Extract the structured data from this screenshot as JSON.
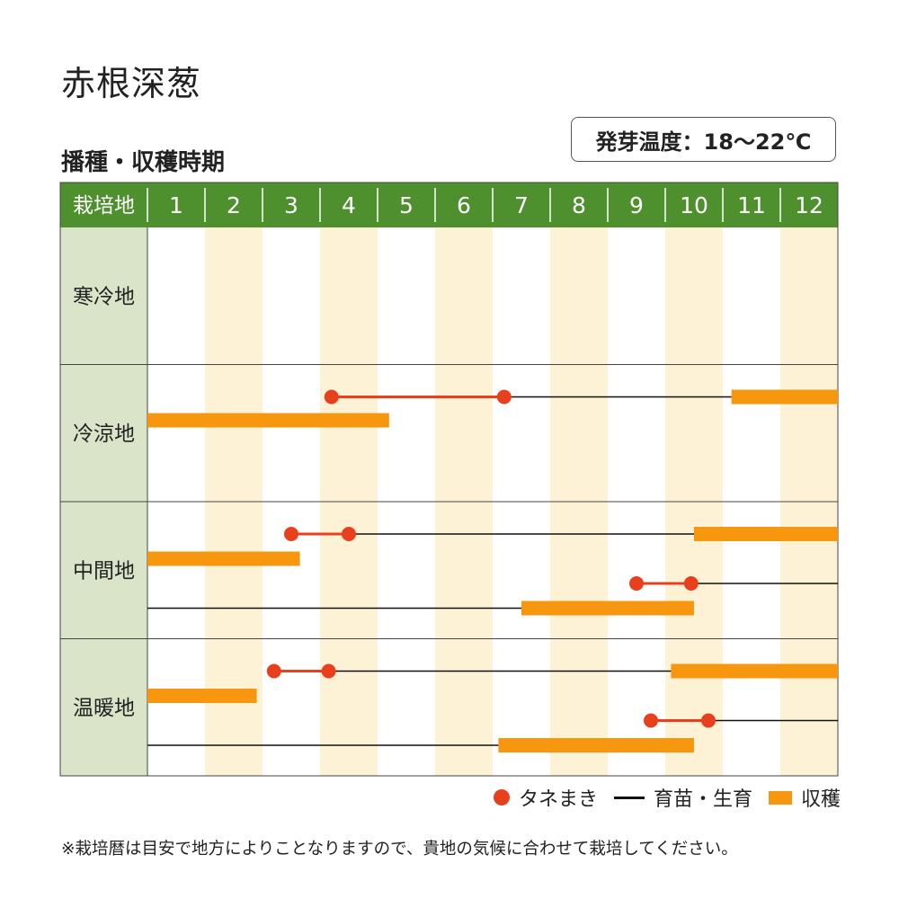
{
  "title": "赤根深葱",
  "subtitle": "播種・収穫時期",
  "temperature_badge": "発芽温度：18～22℃",
  "note": "※栽培暦は目安で地方によりことなりますので、貴地の気候に合わせて栽培してください。",
  "colors": {
    "header_green": "#4e8f2e",
    "region_bg": "#d9e4c9",
    "alt_column": "#fdf2d5",
    "sowing_red": "#e8401c",
    "harvest_orange": "#f7970f",
    "growth_line": "#111111",
    "grid": "#444444"
  },
  "legend": {
    "sowing": "タネまき",
    "growth": "育苗・生育",
    "harvest": "収穫"
  },
  "chart_data": {
    "type": "gantt",
    "header_label": "栽培地",
    "months": [
      "1",
      "2",
      "3",
      "4",
      "5",
      "6",
      "7",
      "8",
      "9",
      "10",
      "11",
      "12"
    ],
    "regions": [
      {
        "name": "寒冷地",
        "tracks": []
      },
      {
        "name": "冷涼地",
        "tracks": [
          {
            "sowing": [
              4.2,
              7.2
            ],
            "growth": [
              7.2,
              11.15
            ],
            "harvest": [
              [
                11.15,
                13.0
              ]
            ]
          },
          {
            "harvest": [
              [
                1.0,
                5.2
              ]
            ]
          }
        ]
      },
      {
        "name": "中間地",
        "tracks": [
          {
            "sowing": [
              3.5,
              4.5
            ],
            "growth": [
              4.5,
              10.5
            ],
            "harvest": [
              [
                10.5,
                13.0
              ]
            ]
          },
          {
            "harvest": [
              [
                1.0,
                3.65
              ]
            ]
          },
          {
            "sowing": [
              9.5,
              10.45
            ],
            "growth": [
              10.45,
              13.0
            ]
          },
          {
            "growth": [
              1.0,
              7.5
            ],
            "harvest": [
              [
                7.5,
                10.5
              ]
            ]
          }
        ]
      },
      {
        "name": "温暖地",
        "tracks": [
          {
            "sowing": [
              3.2,
              4.15
            ],
            "growth": [
              4.15,
              10.1
            ],
            "harvest": [
              [
                10.1,
                13.0
              ]
            ]
          },
          {
            "harvest": [
              [
                1.0,
                2.9
              ]
            ]
          },
          {
            "sowing": [
              9.75,
              10.75
            ],
            "growth": [
              10.75,
              13.0
            ]
          },
          {
            "growth": [
              1.0,
              7.1
            ],
            "harvest": [
              [
                7.1,
                10.5
              ]
            ]
          }
        ]
      }
    ]
  }
}
